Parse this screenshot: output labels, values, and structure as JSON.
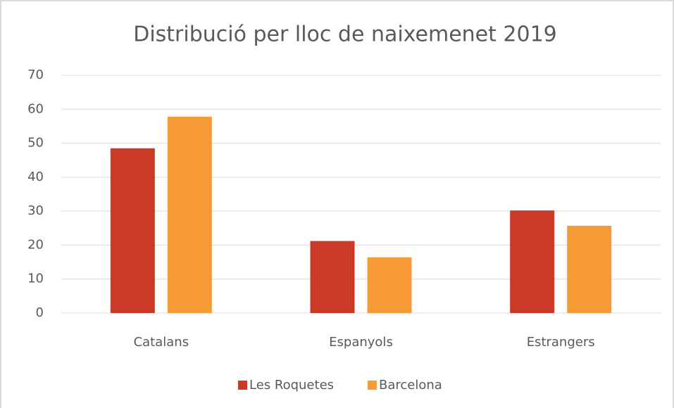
{
  "chart_data": {
    "type": "bar",
    "title": "Distribució per lloc de naixemenet 2019",
    "categories": [
      "Catalans",
      "Espanyols",
      "Estrangers"
    ],
    "series": [
      {
        "name": "Les Roquetes",
        "color": "#cb3a27",
        "values": [
          48.5,
          21.2,
          30.2
        ]
      },
      {
        "name": "Barcelona",
        "color": "#f79b37",
        "values": [
          57.8,
          16.4,
          25.7
        ]
      }
    ],
    "ylim": [
      0,
      70
    ],
    "yticks": [
      0,
      10,
      20,
      30,
      40,
      50,
      60,
      70
    ],
    "grid": true,
    "legend": "bottom"
  }
}
